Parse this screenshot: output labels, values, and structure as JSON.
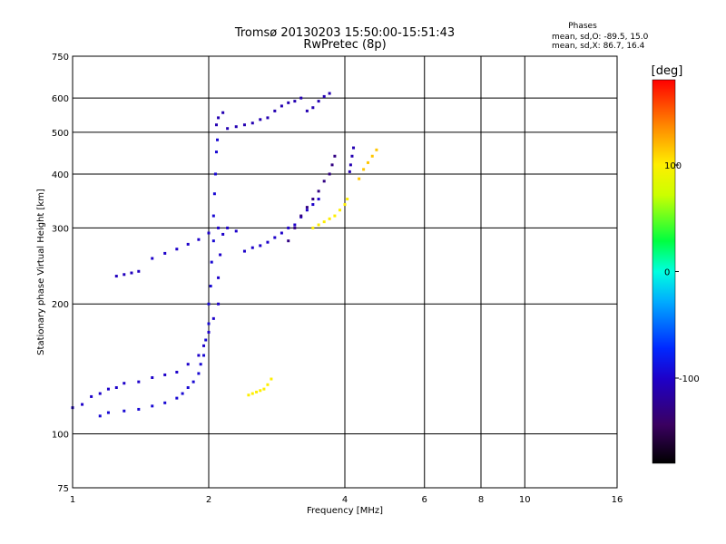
{
  "chart_data": {
    "type": "scatter",
    "title": "Tromsø 20130203 15:50:00-15:51:43",
    "subtitle": "RwPretec (8p)",
    "xlabel": "Frequency [MHz]",
    "ylabel": "Stationary phase Virtual Height [km]",
    "x_scale": "log",
    "y_scale": "log",
    "xlim": [
      1,
      16
    ],
    "ylim": [
      75,
      750
    ],
    "x_ticks": [
      1,
      2,
      4,
      6,
      8,
      10,
      16
    ],
    "x_tick_labels": [
      "1",
      "2",
      "4",
      "6",
      "8",
      "10",
      "16"
    ],
    "y_ticks": [
      75,
      100,
      200,
      300,
      400,
      500,
      600,
      750
    ],
    "y_tick_labels": [
      "75",
      "100",
      "200",
      "300",
      "400",
      "500",
      "600",
      "750"
    ],
    "grid": true,
    "stats_header": "Phases",
    "stats": [
      "mean, sd,O: -89.5, 15.0",
      "mean, sd,X: 86.7, 16.4"
    ],
    "colorbar": {
      "label": "[deg]",
      "range": [
        -180,
        180
      ],
      "ticks": [
        -100,
        0,
        100
      ],
      "tick_labels": [
        "-100",
        "0",
        "100"
      ]
    },
    "traces": [
      {
        "name": "",
        "phase_deg": -100,
        "points": [
          [
            1.0,
            115
          ],
          [
            1.05,
            117
          ],
          [
            1.1,
            122
          ],
          [
            1.15,
            124
          ],
          [
            1.2,
            127
          ],
          [
            1.25,
            128
          ],
          [
            1.3,
            131
          ],
          [
            1.4,
            132
          ],
          [
            1.5,
            135
          ],
          [
            1.6,
            137
          ],
          [
            1.7,
            139
          ],
          [
            1.8,
            145
          ],
          [
            1.9,
            152
          ],
          [
            1.95,
            160
          ],
          [
            2.0,
            172
          ],
          [
            2.05,
            185
          ],
          [
            2.1,
            200
          ],
          [
            2.1,
            230
          ],
          [
            2.12,
            260
          ],
          [
            2.15,
            290
          ]
        ]
      },
      {
        "name": "",
        "phase_deg": -95,
        "points": [
          [
            1.15,
            110
          ],
          [
            1.2,
            112
          ],
          [
            1.3,
            113
          ],
          [
            1.4,
            114
          ],
          [
            1.5,
            116
          ],
          [
            1.6,
            118
          ],
          [
            1.7,
            121
          ],
          [
            1.75,
            124
          ],
          [
            1.8,
            128
          ],
          [
            1.85,
            132
          ],
          [
            1.9,
            138
          ],
          [
            1.92,
            145
          ],
          [
            1.95,
            152
          ],
          [
            1.97,
            165
          ],
          [
            2.0,
            180
          ],
          [
            2.0,
            200
          ],
          [
            2.02,
            220
          ],
          [
            2.03,
            250
          ],
          [
            2.05,
            280
          ],
          [
            2.05,
            320
          ],
          [
            2.06,
            360
          ],
          [
            2.07,
            400
          ],
          [
            2.08,
            450
          ],
          [
            2.09,
            480
          ]
        ]
      },
      {
        "name": "",
        "phase_deg": -110,
        "points": [
          [
            2.08,
            520
          ],
          [
            2.1,
            540
          ],
          [
            2.15,
            555
          ],
          [
            2.2,
            510
          ],
          [
            2.3,
            515
          ],
          [
            2.4,
            520
          ],
          [
            2.5,
            525
          ],
          [
            2.6,
            535
          ],
          [
            2.7,
            540
          ],
          [
            2.8,
            560
          ],
          [
            2.9,
            575
          ],
          [
            3.0,
            585
          ],
          [
            3.1,
            590
          ],
          [
            3.2,
            600
          ],
          [
            3.3,
            560
          ],
          [
            3.4,
            570
          ],
          [
            3.5,
            590
          ],
          [
            3.6,
            605
          ],
          [
            3.7,
            615
          ]
        ]
      },
      {
        "name": "",
        "phase_deg": -100,
        "points": [
          [
            1.5,
            255
          ],
          [
            1.6,
            262
          ],
          [
            1.7,
            268
          ],
          [
            1.8,
            275
          ],
          [
            1.9,
            282
          ],
          [
            2.0,
            292
          ],
          [
            2.1,
            300
          ],
          [
            2.2,
            300
          ],
          [
            2.3,
            295
          ],
          [
            2.4,
            265
          ],
          [
            2.5,
            270
          ],
          [
            2.6,
            273
          ],
          [
            2.7,
            278
          ],
          [
            2.8,
            285
          ],
          [
            2.9,
            292
          ],
          [
            3.0,
            300
          ],
          [
            3.1,
            305
          ],
          [
            3.2,
            318
          ],
          [
            3.3,
            330
          ],
          [
            3.4,
            340
          ],
          [
            3.5,
            350
          ]
        ]
      },
      {
        "name": "",
        "phase_deg": -130,
        "points": [
          [
            3.0,
            280
          ],
          [
            3.1,
            300
          ],
          [
            3.2,
            320
          ],
          [
            3.3,
            335
          ],
          [
            3.4,
            350
          ],
          [
            3.5,
            365
          ],
          [
            3.6,
            385
          ],
          [
            3.7,
            400
          ],
          [
            3.75,
            420
          ],
          [
            3.8,
            440
          ]
        ]
      },
      {
        "name": "",
        "phase_deg": 100,
        "points": [
          [
            3.4,
            300
          ],
          [
            3.5,
            305
          ],
          [
            3.6,
            310
          ],
          [
            3.7,
            315
          ],
          [
            3.8,
            320
          ],
          [
            3.9,
            330
          ],
          [
            4.0,
            340
          ],
          [
            4.05,
            350
          ]
        ]
      },
      {
        "name": "",
        "phase_deg": 115,
        "points": [
          [
            4.3,
            390
          ],
          [
            4.4,
            410
          ],
          [
            4.5,
            425
          ],
          [
            4.6,
            440
          ],
          [
            4.7,
            455
          ]
        ]
      },
      {
        "name": "",
        "phase_deg": -105,
        "points": [
          [
            1.25,
            232
          ],
          [
            1.3,
            234
          ],
          [
            1.35,
            236
          ],
          [
            1.4,
            238
          ]
        ]
      },
      {
        "name": "",
        "phase_deg": 100,
        "points": [
          [
            2.45,
            123
          ],
          [
            2.5,
            124
          ],
          [
            2.55,
            125
          ],
          [
            2.6,
            126
          ],
          [
            2.65,
            127
          ],
          [
            2.7,
            130
          ],
          [
            2.75,
            134
          ]
        ]
      },
      {
        "name": "",
        "phase_deg": -110,
        "points": [
          [
            4.1,
            405
          ],
          [
            4.12,
            420
          ],
          [
            4.15,
            440
          ],
          [
            4.18,
            460
          ]
        ]
      }
    ]
  }
}
